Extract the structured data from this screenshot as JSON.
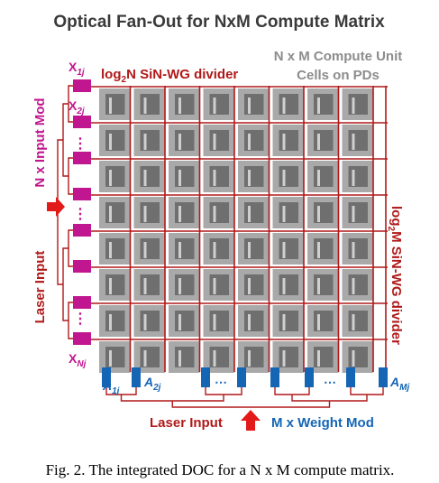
{
  "title": "Optical Fan-Out for NxM Compute Matrix",
  "compute_label": [
    "N x M Compute Unit",
    "Cells on PDs"
  ],
  "divider_n_label": {
    "pre": "log",
    "sub": "2",
    "base": "N",
    "rest": " SiN-WG divider"
  },
  "divider_m_label": {
    "pre": "log",
    "sub": "2",
    "base": "M",
    "rest": " SiN-WG divider"
  },
  "input_mod_label": "N x Input Mod",
  "laser_input_left": "Laser Input",
  "laser_input_bottom": "Laser Input",
  "weight_mod_label": "M x Weight Mod",
  "x_labels": [
    {
      "base": "X",
      "sub": "1j"
    },
    {
      "base": "X",
      "sub": "2j"
    },
    {
      "base": "X",
      "sub": "Nj"
    }
  ],
  "a_labels": [
    {
      "base": "A",
      "sub": "1j"
    },
    {
      "base": "A",
      "sub": "2j"
    },
    {
      "base": "A",
      "sub": "Mj"
    }
  ],
  "ellipsis": "⋯",
  "vellipsis": "⋮",
  "caption": "Fig. 2. The integrated DOC for a N x M compute matrix.",
  "colors": {
    "title": "#3a3a3a",
    "waveguide": "#b01919",
    "input_mod": "#c0168f",
    "weight_mod": "#1565b5",
    "cell_outer": "#a9a9a9",
    "cell_pd": "#6f6f6f",
    "gray_text": "#8c8c8c",
    "laser_arrow": "#e21a1a"
  }
}
